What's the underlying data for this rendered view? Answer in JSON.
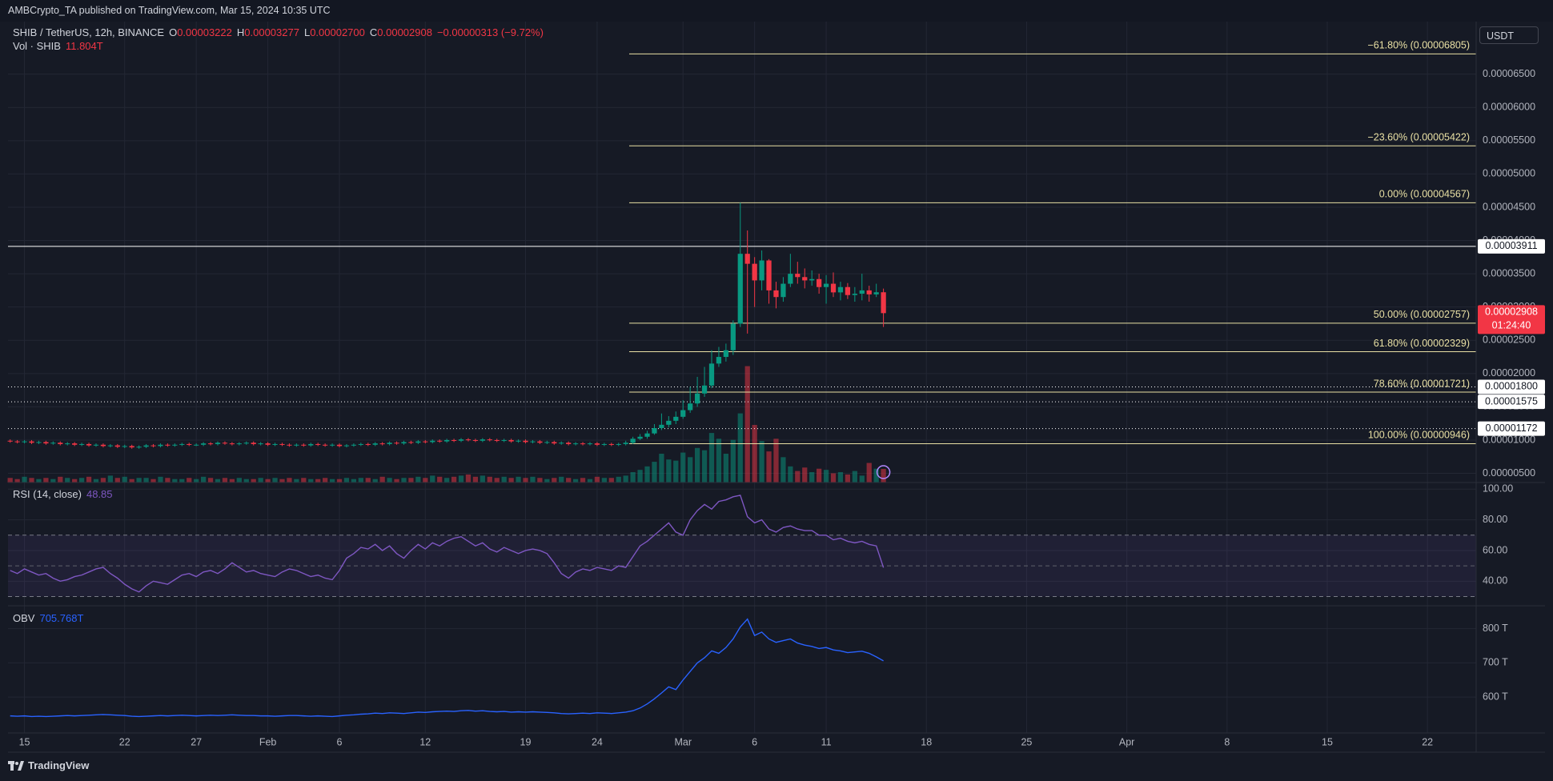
{
  "header": "AMBCrypto_TA published on TradingView.com, Mar 15, 2024 10:35 UTC",
  "footer": "TradingView",
  "chart_data": [
    {
      "type": "candlestick",
      "title": "SHIB / TetherUS, 12h, BINANCE",
      "ohlc": [
        {
          "key": "O",
          "value": "0.00003222"
        },
        {
          "key": "H",
          "value": "0.00003277"
        },
        {
          "key": "L",
          "value": "0.00002700"
        },
        {
          "key": "C",
          "value": "0.00002908"
        }
      ],
      "change": "−0.00000313 (−9.72%)",
      "currency": "USDT",
      "grid": true,
      "up_color": "#089981",
      "down_color": "#f23645",
      "xlim": [
        -0.3,
        204.8
      ],
      "xticks": [
        {
          "value": 2,
          "label": "15"
        },
        {
          "value": 16,
          "label": "22"
        },
        {
          "value": 26,
          "label": "27"
        },
        {
          "value": 36,
          "label": "Feb"
        },
        {
          "value": 46,
          "label": "6"
        },
        {
          "value": 58,
          "label": "12"
        },
        {
          "value": 72,
          "label": "19"
        },
        {
          "value": 82,
          "label": "24"
        },
        {
          "value": 94,
          "label": "Mar"
        },
        {
          "value": 104,
          "label": "6"
        },
        {
          "value": 114,
          "label": "11"
        },
        {
          "value": 128,
          "label": "18"
        },
        {
          "value": 142,
          "label": "25"
        },
        {
          "value": 156,
          "label": "Apr"
        },
        {
          "value": 170,
          "label": "8"
        },
        {
          "value": 184,
          "label": "15"
        },
        {
          "value": 198,
          "label": "22"
        }
      ],
      "ylim": [
        3.62e-06,
        7.29e-05
      ],
      "yticks": [
        {
          "value": 5e-06,
          "label": "0.00000500"
        },
        {
          "value": 1e-05,
          "label": "0.00001000"
        },
        {
          "value": 1.5e-05,
          "label": "0.00001500"
        },
        {
          "value": 2e-05,
          "label": "0.00002000"
        },
        {
          "value": 2.5e-05,
          "label": "0.00002500"
        },
        {
          "value": 3e-05,
          "label": "0.00003000"
        },
        {
          "value": 3.5e-05,
          "label": "0.00003500"
        },
        {
          "value": 4e-05,
          "label": "0.00004000"
        },
        {
          "value": 4.5e-05,
          "label": "0.00004500"
        },
        {
          "value": 5e-05,
          "label": "0.00005000"
        },
        {
          "value": 5.5e-05,
          "label": "0.00005500"
        },
        {
          "value": 6e-05,
          "label": "0.00006000"
        },
        {
          "value": 6.5e-05,
          "label": "0.00006500"
        }
      ],
      "open": [
        9.9e-06,
        9.8e-06,
        9.7e-06,
        9.8e-06,
        9.6e-06,
        9.7e-06,
        9.5e-06,
        9.6e-06,
        9.4e-06,
        9.5e-06,
        9.3e-06,
        9.4e-06,
        9.2e-06,
        9.3e-06,
        9.1e-06,
        9.2e-06,
        9e-06,
        9.1e-06,
        8.9e-06,
        9e-06,
        9.2e-06,
        9.1e-06,
        9.3e-06,
        9.2e-06,
        9.3e-06,
        9.4e-06,
        9.3e-06,
        9.3e-06,
        9.5e-06,
        9.4e-06,
        9.6e-06,
        9.5e-06,
        9.4e-06,
        9.5e-06,
        9.6e-06,
        9.4e-06,
        9.5e-06,
        9.3e-06,
        9.4e-06,
        9.3e-06,
        9.2e-06,
        9.3e-06,
        9.2e-06,
        9.4e-06,
        9.3e-06,
        9.2e-06,
        9.3e-06,
        9.1e-06,
        9.2e-06,
        9.3e-06,
        9.4e-06,
        9.3e-06,
        9.5e-06,
        9.4e-06,
        9.6e-06,
        9.5e-06,
        9.7e-06,
        9.6e-06,
        9.8e-06,
        9.7e-06,
        9.9e-06,
        9.8e-06,
        1e-05,
        9.9e-06,
        1.01e-05,
        1e-05,
        9.9e-06,
        1.01e-05,
        1e-05,
        9.9e-06,
        1e-05,
        9.8e-06,
        9.9e-06,
        9.7e-06,
        9.8e-06,
        9.6e-06,
        9.7e-06,
        9.5e-06,
        9.6e-06,
        9.4e-06,
        9.5e-06,
        9.4e-06,
        9.5e-06,
        9.3e-06,
        9.4e-06,
        9.3e-06,
        9.4e-06,
        9.6e-06,
        1.02e-05,
        1.05e-05,
        1.1e-05,
        1.18e-05,
        1.23e-05,
        1.29e-05,
        1.35e-05,
        1.45e-05,
        1.55e-05,
        1.7e-05,
        1.82e-05,
        2.15e-05,
        2.25e-05,
        2.35e-05,
        2.75e-05,
        3.8e-05,
        3.65e-05,
        3.4e-05,
        3.7e-05,
        3.25e-05,
        3.15e-05,
        3.35e-05,
        3.5e-05,
        3.45e-05,
        3.4e-05,
        3.42e-05,
        3.3e-05,
        3.35e-05,
        3.22e-05,
        3.3e-05,
        3.18e-05,
        3.2e-05,
        3.25e-05,
        3.19e-05,
        3.222e-05
      ],
      "high": [
        1.01e-05,
        1e-05,
        1e-05,
        1e-05,
        9.9e-06,
        9.9e-06,
        9.8e-06,
        9.8e-06,
        9.7e-06,
        9.7e-06,
        9.6e-06,
        9.6e-06,
        9.5e-06,
        9.5e-06,
        9.4e-06,
        9.4e-06,
        9.3e-06,
        9.3e-06,
        9.2e-06,
        9.4e-06,
        9.4e-06,
        9.5e-06,
        9.5e-06,
        9.5e-06,
        9.6e-06,
        9.6e-06,
        9.5e-06,
        9.7e-06,
        9.7e-06,
        9.8e-06,
        9.8e-06,
        9.7e-06,
        9.7e-06,
        9.8e-06,
        9.8e-06,
        9.7e-06,
        9.7e-06,
        9.6e-06,
        9.6e-06,
        9.5e-06,
        9.5e-06,
        9.5e-06,
        9.6e-06,
        9.6e-06,
        9.5e-06,
        9.5e-06,
        9.5e-06,
        9.4e-06,
        9.5e-06,
        9.6e-06,
        9.6e-06,
        9.7e-06,
        9.7e-06,
        9.8e-06,
        9.8e-06,
        9.9e-06,
        9.9e-06,
        1e-05,
        1e-05,
        1.01e-05,
        1.01e-05,
        1.02e-05,
        1.02e-05,
        1.03e-05,
        1.03e-05,
        1.02e-05,
        1.03e-05,
        1.03e-05,
        1.02e-05,
        1.02e-05,
        1.02e-05,
        1.01e-05,
        1.01e-05,
        1e-05,
        1e-05,
        9.9e-06,
        9.9e-06,
        9.8e-06,
        9.8e-06,
        9.7e-06,
        9.7e-06,
        9.7e-06,
        9.7e-06,
        9.6e-06,
        9.6e-06,
        9.6e-06,
        9.9e-06,
        1.05e-05,
        1.09e-05,
        1.14e-05,
        1.24e-05,
        1.4e-05,
        1.36e-05,
        1.43e-05,
        1.6e-05,
        1.8e-05,
        1.95e-05,
        2.1e-05,
        2.35e-05,
        2.4e-05,
        2.45e-05,
        2.8e-05,
        4.567e-05,
        4.15e-05,
        3.75e-05,
        3.85e-05,
        3.72e-05,
        3.38e-05,
        3.45e-05,
        3.8e-05,
        3.68e-05,
        3.58e-05,
        3.55e-05,
        3.5e-05,
        3.48e-05,
        3.52e-05,
        3.38e-05,
        3.36e-05,
        3.3e-05,
        3.5e-05,
        3.32e-05,
        3.35e-05,
        3.277e-05
      ],
      "low": [
        9.6e-06,
        9.5e-06,
        9.5e-06,
        9.4e-06,
        9.4e-06,
        9.3e-06,
        9.3e-06,
        9.2e-06,
        9.2e-06,
        9.1e-06,
        9.1e-06,
        9e-06,
        9e-06,
        8.9e-06,
        8.9e-06,
        8.8e-06,
        8.8e-06,
        8.7e-06,
        8.7e-06,
        8.8e-06,
        8.9e-06,
        8.9e-06,
        9e-06,
        9e-06,
        9.1e-06,
        9.1e-06,
        9.1e-06,
        9.1e-06,
        9.2e-06,
        9.2e-06,
        9.3e-06,
        9.2e-06,
        9.2e-06,
        9.3e-06,
        9.2e-06,
        9.2e-06,
        9.1e-06,
        9.1e-06,
        9.1e-06,
        9e-06,
        9e-06,
        9e-06,
        9e-06,
        9.1e-06,
        9e-06,
        9e-06,
        8.9e-06,
        8.9e-06,
        9e-06,
        9.1e-06,
        9.1e-06,
        9.1e-06,
        9.2e-06,
        9.2e-06,
        9.3e-06,
        9.3e-06,
        9.4e-06,
        9.4e-06,
        9.5e-06,
        9.5e-06,
        9.6e-06,
        9.6e-06,
        9.7e-06,
        9.7e-06,
        9.8e-06,
        9.7e-06,
        9.7e-06,
        9.8e-06,
        9.7e-06,
        9.7e-06,
        9.6e-06,
        9.6e-06,
        9.5e-06,
        9.5e-06,
        9.4e-06,
        9.4e-06,
        9.3e-06,
        9.3e-06,
        9.2e-06,
        9.2e-06,
        9.2e-06,
        9.2e-06,
        9.1e-06,
        9.1e-06,
        9.1e-06,
        9.1e-06,
        9.2e-06,
        9.4e-06,
        1e-05,
        1.02e-05,
        1.08e-05,
        1.15e-05,
        1.19e-05,
        1.24e-05,
        1.32e-05,
        1.41e-05,
        1.5e-05,
        1.65e-05,
        1.78e-05,
        2.1e-05,
        2.18e-05,
        2.28e-05,
        2.7e-05,
        2.6e-05,
        3e-05,
        3.25e-05,
        3.05e-05,
        2.98e-05,
        3.08e-05,
        3.3e-05,
        3.35e-05,
        3.28e-05,
        3.32e-05,
        3.2e-05,
        3.05e-05,
        3.15e-05,
        3.1e-05,
        3.12e-05,
        3.08e-05,
        3.1e-05,
        3.08e-05,
        3.15e-05,
        2.7e-05
      ],
      "close": [
        9.8e-06,
        9.7e-06,
        9.8e-06,
        9.6e-06,
        9.7e-06,
        9.5e-06,
        9.6e-06,
        9.4e-06,
        9.5e-06,
        9.3e-06,
        9.4e-06,
        9.2e-06,
        9.3e-06,
        9.1e-06,
        9.2e-06,
        9e-06,
        9.1e-06,
        8.9e-06,
        9e-06,
        9.2e-06,
        9.1e-06,
        9.3e-06,
        9.2e-06,
        9.3e-06,
        9.4e-06,
        9.3e-06,
        9.3e-06,
        9.5e-06,
        9.4e-06,
        9.6e-06,
        9.5e-06,
        9.4e-06,
        9.5e-06,
        9.6e-06,
        9.4e-06,
        9.5e-06,
        9.3e-06,
        9.4e-06,
        9.3e-06,
        9.2e-06,
        9.3e-06,
        9.2e-06,
        9.4e-06,
        9.3e-06,
        9.2e-06,
        9.3e-06,
        9.1e-06,
        9.2e-06,
        9.3e-06,
        9.4e-06,
        9.3e-06,
        9.5e-06,
        9.4e-06,
        9.6e-06,
        9.5e-06,
        9.7e-06,
        9.6e-06,
        9.8e-06,
        9.7e-06,
        9.9e-06,
        9.8e-06,
        1e-05,
        9.9e-06,
        1.01e-05,
        1e-05,
        9.9e-06,
        1.01e-05,
        1e-05,
        9.9e-06,
        1e-05,
        9.8e-06,
        9.9e-06,
        9.7e-06,
        9.8e-06,
        9.6e-06,
        9.7e-06,
        9.5e-06,
        9.6e-06,
        9.4e-06,
        9.5e-06,
        9.4e-06,
        9.5e-06,
        9.3e-06,
        9.4e-06,
        9.3e-06,
        9.4e-06,
        9.6e-06,
        1.02e-05,
        1.05e-05,
        1.1e-05,
        1.18e-05,
        1.23e-05,
        1.29e-05,
        1.35e-05,
        1.45e-05,
        1.55e-05,
        1.7e-05,
        1.82e-05,
        2.15e-05,
        2.25e-05,
        2.35e-05,
        2.75e-05,
        3.8e-05,
        3.65e-05,
        3.4e-05,
        3.7e-05,
        3.25e-05,
        3.15e-05,
        3.35e-05,
        3.5e-05,
        3.45e-05,
        3.4e-05,
        3.42e-05,
        3.3e-05,
        3.35e-05,
        3.22e-05,
        3.3e-05,
        3.18e-05,
        3.2e-05,
        3.25e-05,
        3.19e-05,
        3.222e-05,
        2.908e-05
      ],
      "volume": {
        "name": "Vol · SHIB",
        "legend_value": "11.804T",
        "ylim": [
          0,
          400
        ],
        "values": [
          4,
          3,
          5,
          4,
          3,
          4,
          3,
          5,
          4,
          3,
          4,
          5,
          3,
          4,
          6,
          4,
          5,
          3,
          4,
          4,
          3,
          5,
          4,
          3,
          3,
          4,
          3,
          5,
          4,
          3,
          4,
          3,
          4,
          3,
          3,
          4,
          3,
          4,
          3,
          4,
          3,
          4,
          3,
          3,
          4,
          3,
          3,
          4,
          3,
          4,
          4,
          3,
          5,
          4,
          3,
          4,
          4,
          5,
          4,
          6,
          5,
          4,
          5,
          6,
          7,
          5,
          6,
          5,
          4,
          5,
          4,
          5,
          4,
          5,
          4,
          3,
          4,
          5,
          4,
          3,
          4,
          3,
          5,
          4,
          4,
          5,
          6,
          9,
          11,
          14,
          18,
          25,
          20,
          19,
          26,
          22,
          30,
          28,
          43,
          38,
          25,
          37,
          60,
          101,
          50,
          36,
          27,
          38,
          22,
          14,
          10,
          13,
          9,
          12,
          11,
          8,
          9,
          7,
          10,
          6,
          17,
          12,
          11.804
        ]
      },
      "fib_color": "#e9e0a4",
      "fib_levels": [
        {
          "value": 6.805e-05,
          "label": "−61.80% (0.00006805)"
        },
        {
          "value": 5.422e-05,
          "label": "−23.60% (0.00005422)"
        },
        {
          "value": 4.567e-05,
          "label": "0.00% (0.00004567)"
        },
        {
          "value": 2.757e-05,
          "label": "50.00% (0.00002757)"
        },
        {
          "value": 2.329e-05,
          "label": "61.80% (0.00002329)"
        },
        {
          "value": 1.721e-05,
          "label": "78.60% (0.00001721)"
        },
        {
          "value": 9.46e-06,
          "label": "100.00% (0.00000946)"
        }
      ],
      "levels": [
        {
          "value": 3.911e-05,
          "label": "0.00003911",
          "style": "solid"
        },
        {
          "value": 1.8e-05,
          "label": "0.00001800",
          "style": "dotted"
        },
        {
          "value": 1.575e-05,
          "label": "0.00001575",
          "style": "dotted"
        },
        {
          "value": 1.172e-05,
          "label": "0.00001172",
          "style": "dotted"
        }
      ],
      "last_price": {
        "label": "0.00002908",
        "countdown": "01:24:40"
      }
    },
    {
      "type": "line",
      "title": "RSI (14, close)",
      "color": "#7e57c2",
      "grid": true,
      "band": [
        30,
        70
      ],
      "midline": 50,
      "band_color": "#7e57c2",
      "ylim": [
        24,
        104.3
      ],
      "yticks": [
        {
          "value": 100,
          "label": "100.00"
        },
        {
          "value": 80,
          "label": "80.00"
        },
        {
          "value": 60,
          "label": "60.00"
        },
        {
          "value": 40,
          "label": "40.00"
        }
      ],
      "values": [
        47,
        45,
        48,
        46,
        44,
        45,
        42,
        40,
        41,
        43,
        44,
        46,
        48,
        49,
        45,
        42,
        38,
        35,
        33,
        37,
        40,
        39,
        38,
        41,
        44,
        45,
        43,
        46,
        47,
        45,
        48,
        52,
        49,
        46,
        47,
        45,
        44,
        43,
        46,
        48,
        47,
        45,
        43,
        44,
        42,
        41,
        47,
        55,
        58,
        62,
        61,
        64,
        60,
        63,
        58,
        55,
        60,
        64,
        61,
        65,
        63,
        66,
        68,
        69,
        66,
        63,
        65,
        61,
        59,
        62,
        60,
        58,
        60,
        61,
        60,
        58,
        52,
        45,
        42,
        46,
        48,
        47,
        49,
        48,
        47,
        50,
        49,
        56,
        63,
        66,
        70,
        74,
        78,
        72,
        70,
        80,
        86,
        90,
        87,
        92,
        93,
        95,
        96,
        82,
        78,
        80,
        74,
        72,
        75,
        76,
        74,
        73,
        73,
        70,
        70,
        67,
        68,
        66,
        65,
        66,
        64,
        63,
        48.85
      ]
    },
    {
      "type": "line",
      "title": "OBV",
      "legend_value": "705.768T",
      "color": "#2962ff",
      "grid": true,
      "ylim": [
        495,
        867
      ],
      "yticks": [
        {
          "value": 800,
          "label": "800 T"
        },
        {
          "value": 700,
          "label": "700 T"
        },
        {
          "value": 600,
          "label": "600 T"
        }
      ],
      "values": [
        545,
        544,
        545,
        543,
        544,
        543,
        544,
        545,
        546,
        545,
        546,
        547,
        548,
        549,
        548,
        547,
        546,
        544,
        543,
        544,
        545,
        546,
        545,
        546,
        547,
        546,
        545,
        546,
        547,
        546,
        547,
        548,
        547,
        546,
        546,
        545,
        545,
        544,
        545,
        546,
        546,
        545,
        544,
        545,
        544,
        543,
        545,
        547,
        548,
        550,
        551,
        553,
        552,
        554,
        553,
        552,
        554,
        556,
        555,
        557,
        558,
        559,
        558,
        560,
        561,
        559,
        560,
        558,
        557,
        558,
        556,
        557,
        556,
        557,
        556,
        555,
        554,
        552,
        551,
        552,
        553,
        552,
        554,
        553,
        552,
        554,
        556,
        560,
        568,
        580,
        595,
        612,
        630,
        622,
        650,
        675,
        700,
        715,
        735,
        728,
        745,
        770,
        805,
        828,
        780,
        790,
        770,
        760,
        765,
        770,
        758,
        752,
        748,
        742,
        745,
        738,
        735,
        730,
        732,
        734,
        728,
        717.6,
        705.768
      ]
    }
  ]
}
